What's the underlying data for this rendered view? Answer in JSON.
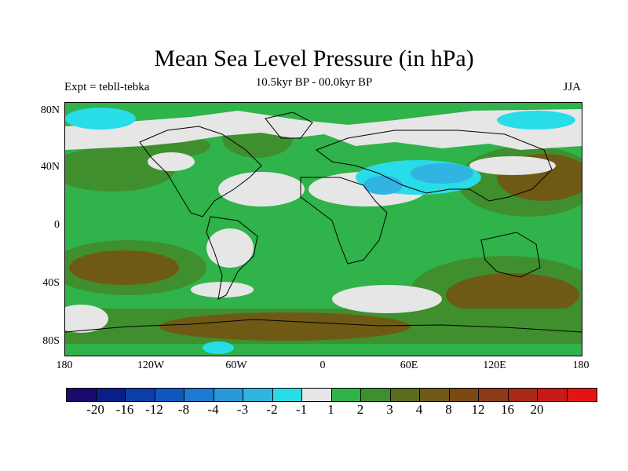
{
  "header": {
    "title": "Mean Sea Level Pressure (in hPa)",
    "subtitle": "10.5kyr BP - 00.0kyr BP",
    "left_label": "Expt = tebll-tebka",
    "right_label": "JJA"
  },
  "axes": {
    "x_ticks": [
      "180",
      "120W",
      "60W",
      "0",
      "60E",
      "120E",
      "180"
    ],
    "y_ticks": [
      "80N",
      "40N",
      "0",
      "40S",
      "80S"
    ]
  },
  "colorbar": {
    "colors": [
      "#1a0a6e",
      "#0a1e8a",
      "#0a3ea8",
      "#1058c0",
      "#1c7ad0",
      "#2a98d8",
      "#30b4e2",
      "#28dce8",
      "#e6e6e6",
      "#2fb34a",
      "#3f8f2f",
      "#5a6e1e",
      "#6e5a14",
      "#7a4a12",
      "#8e3a16",
      "#a8281a",
      "#c81818",
      "#e41414"
    ],
    "labels": [
      "-20",
      "-16",
      "-12",
      "-8",
      "-4",
      "-3",
      "-2",
      "-1",
      "1",
      "2",
      "3",
      "4",
      "8",
      "12",
      "16",
      "20"
    ]
  },
  "map_fields": {
    "ocean_positive": "#2fb34a",
    "strong_positive": "#5a6e1e",
    "very_strong_positive": "#6e5a14",
    "near_zero": "#e6e6e6",
    "negative": "#28dce8",
    "more_negative": "#30b4e2",
    "coast": "#000000"
  }
}
